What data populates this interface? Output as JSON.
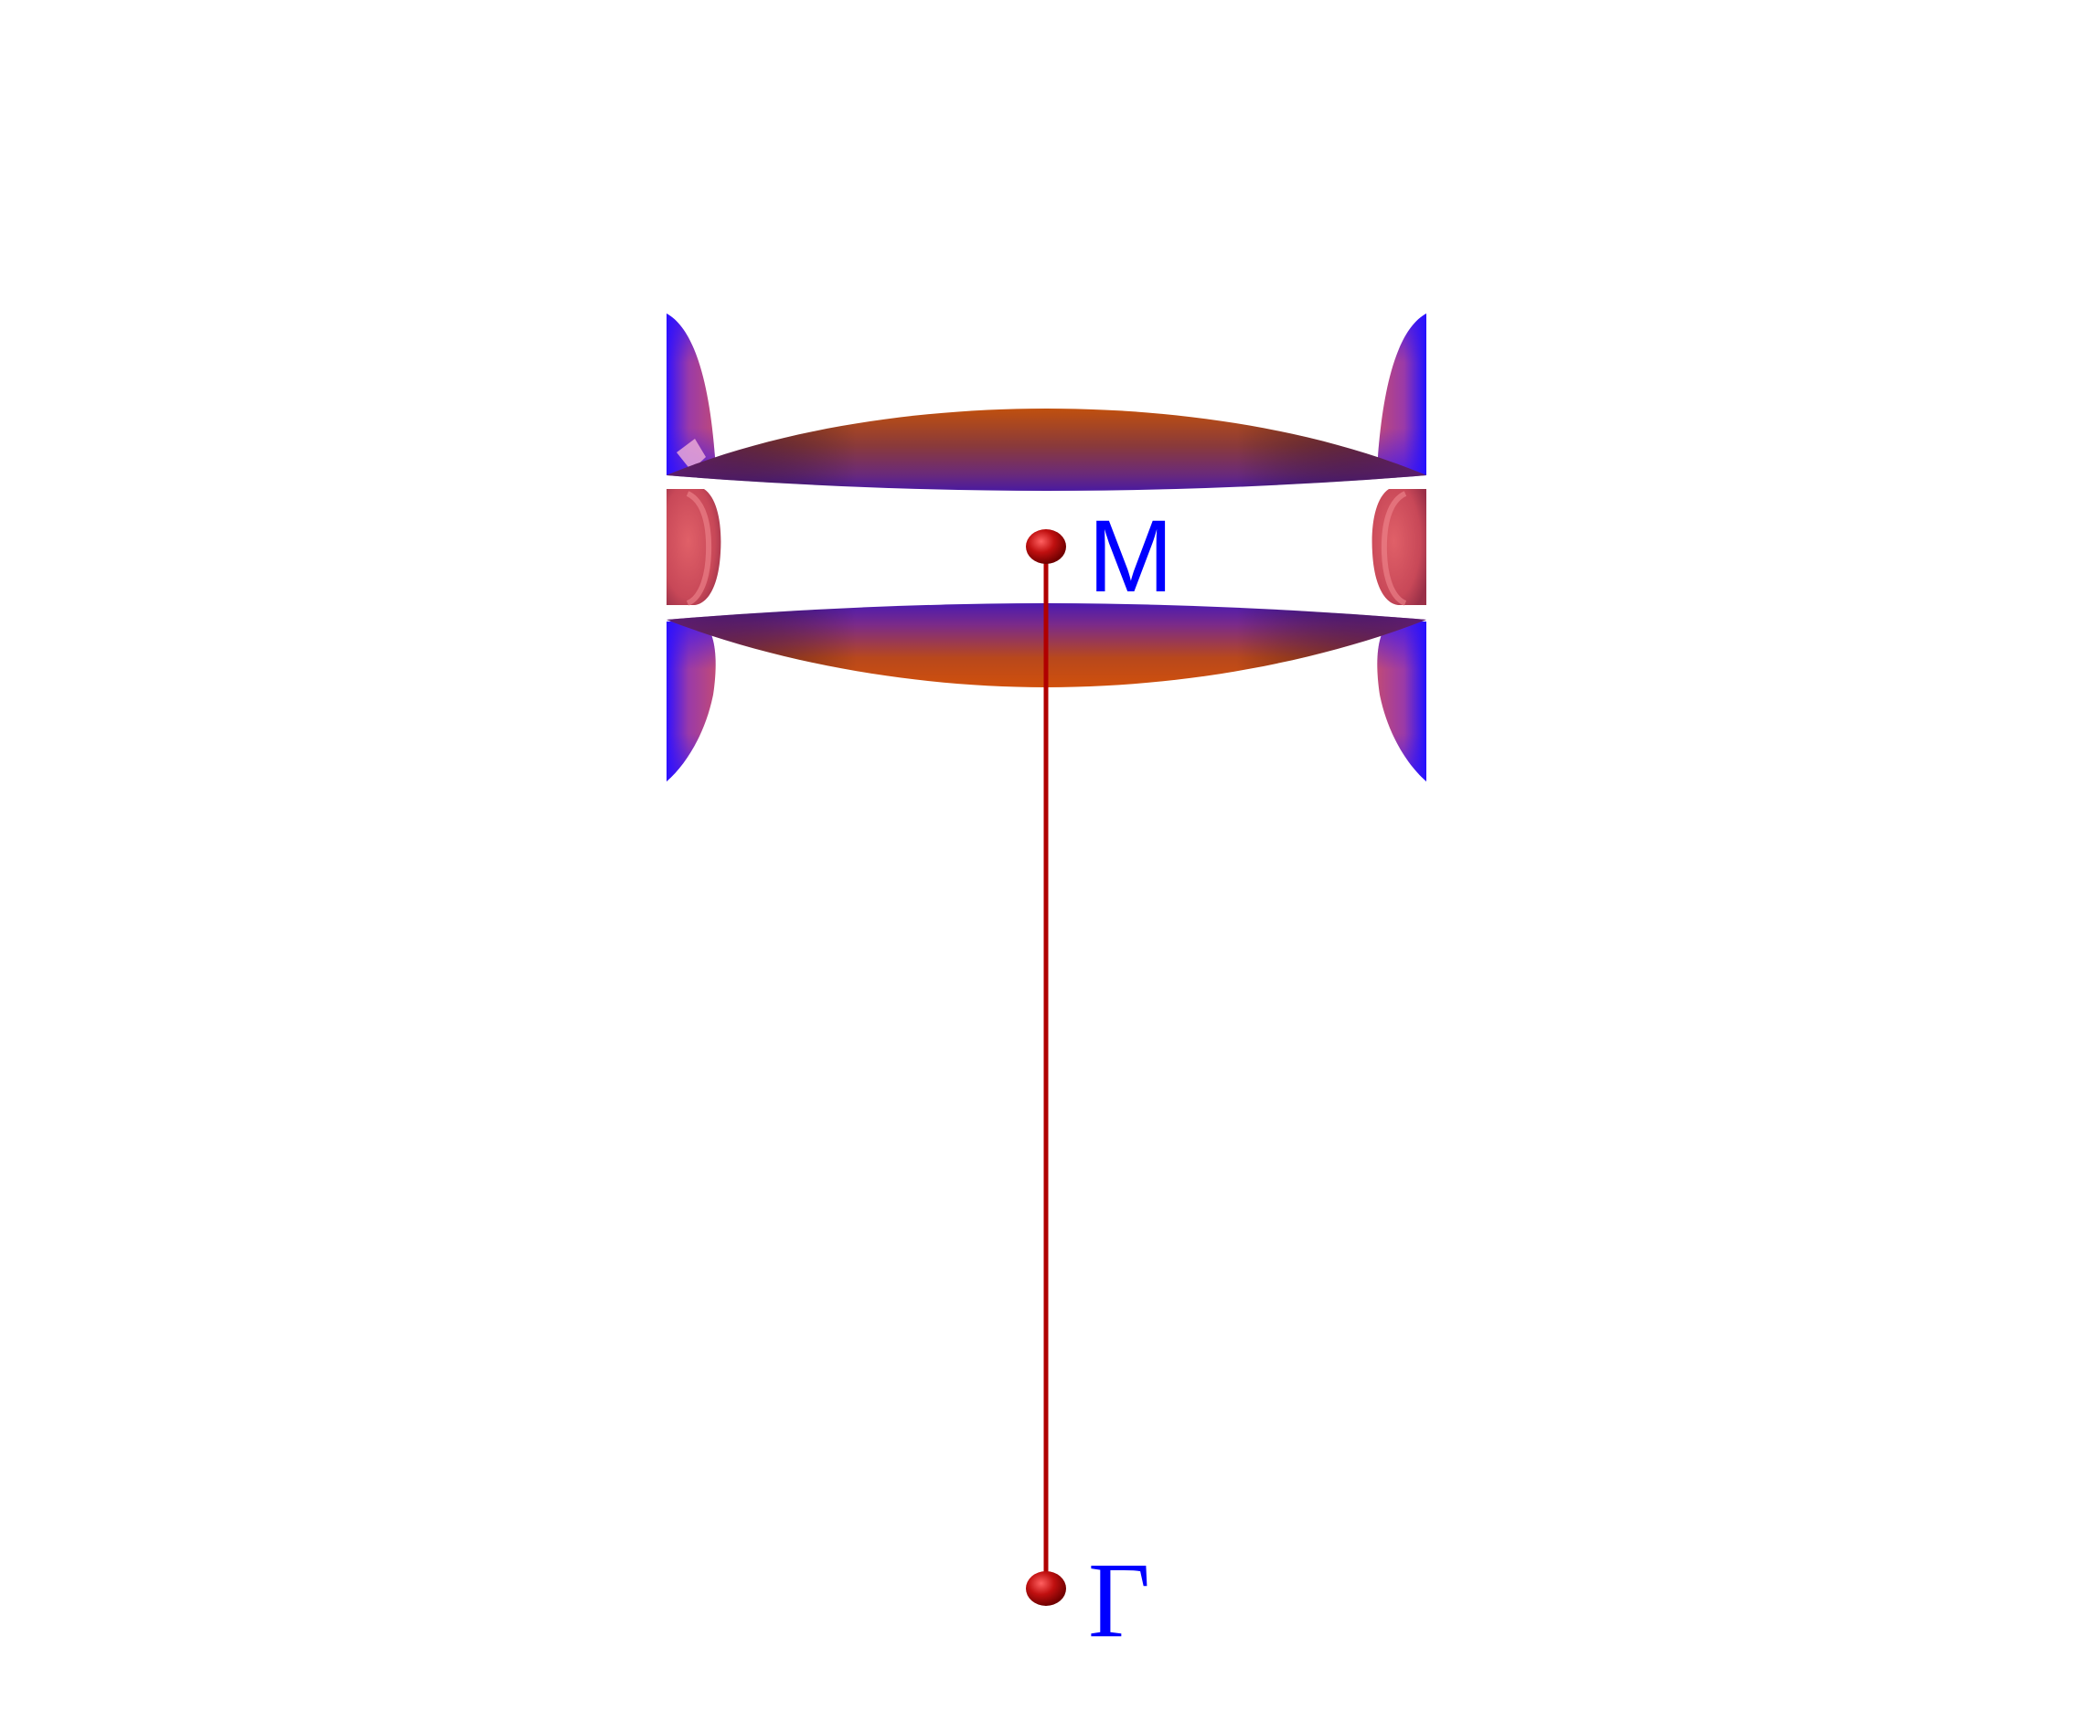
{
  "labels": {
    "m_point": "M",
    "gamma_point": "Γ"
  },
  "colors": {
    "background": "#ffffff",
    "path_line": "#b00000",
    "point_marker": "#b00000",
    "label": "#0000ff",
    "surface_orange": "#c84a10",
    "surface_purple": "#7a2a9a",
    "surface_blue": "#1a10ff",
    "surface_pink": "#d8505a"
  }
}
